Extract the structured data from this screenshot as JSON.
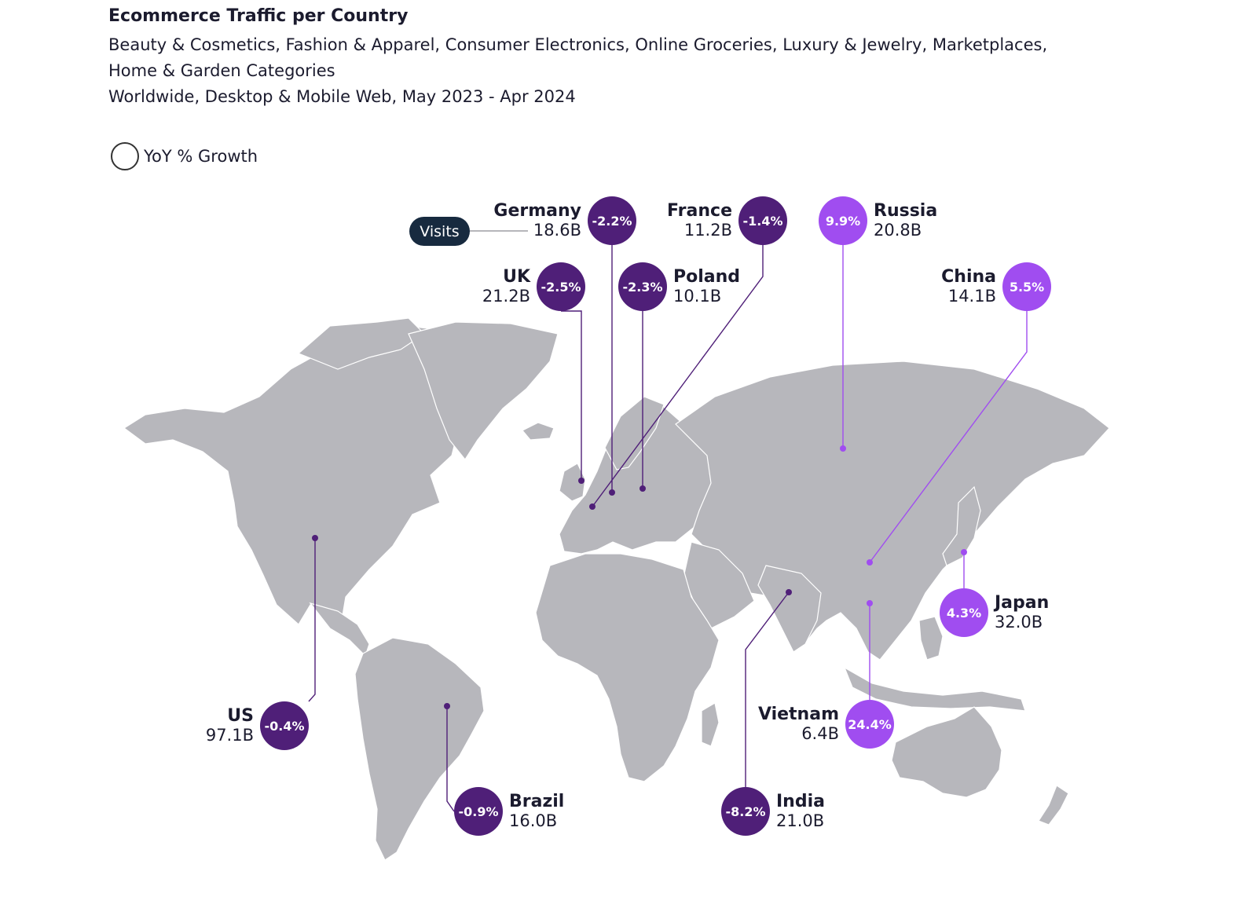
{
  "header": {
    "title": "Ecommerce Traffic per Country",
    "subtitle_lines": [
      "Beauty & Cosmetics, Fashion & Apparel, Consumer Electronics, Online Groceries, Luxury & Jewelry, Marketplaces,",
      "Home & Garden Categories",
      "Worldwide, Desktop & Mobile Web, May 2023 - Apr 2024"
    ]
  },
  "legend": {
    "label": "YoY % Growth"
  },
  "visits_label": "Visits",
  "colors": {
    "negative": "#4f1f78",
    "positive": "#a04df0",
    "land": "#b7b7bc",
    "pill": "#172a3f"
  },
  "countries": [
    {
      "name": "Germany",
      "visits": "18.6B",
      "growth": "-2.2%",
      "direction": "negative"
    },
    {
      "name": "France",
      "visits": "11.2B",
      "growth": "-1.4%",
      "direction": "negative"
    },
    {
      "name": "Russia",
      "visits": "20.8B",
      "growth": "9.9%",
      "direction": "positive"
    },
    {
      "name": "UK",
      "visits": "21.2B",
      "growth": "-2.5%",
      "direction": "negative"
    },
    {
      "name": "Poland",
      "visits": "10.1B",
      "growth": "-2.3%",
      "direction": "negative"
    },
    {
      "name": "China",
      "visits": "14.1B",
      "growth": "5.5%",
      "direction": "positive"
    },
    {
      "name": "Japan",
      "visits": "32.0B",
      "growth": "4.3%",
      "direction": "positive"
    },
    {
      "name": "Vietnam",
      "visits": "6.4B",
      "growth": "24.4%",
      "direction": "positive"
    },
    {
      "name": "US",
      "visits": "97.1B",
      "growth": "-0.4%",
      "direction": "negative"
    },
    {
      "name": "Brazil",
      "visits": "16.0B",
      "growth": "-0.9%",
      "direction": "negative"
    },
    {
      "name": "India",
      "visits": "21.0B",
      "growth": "-8.2%",
      "direction": "negative"
    }
  ]
}
